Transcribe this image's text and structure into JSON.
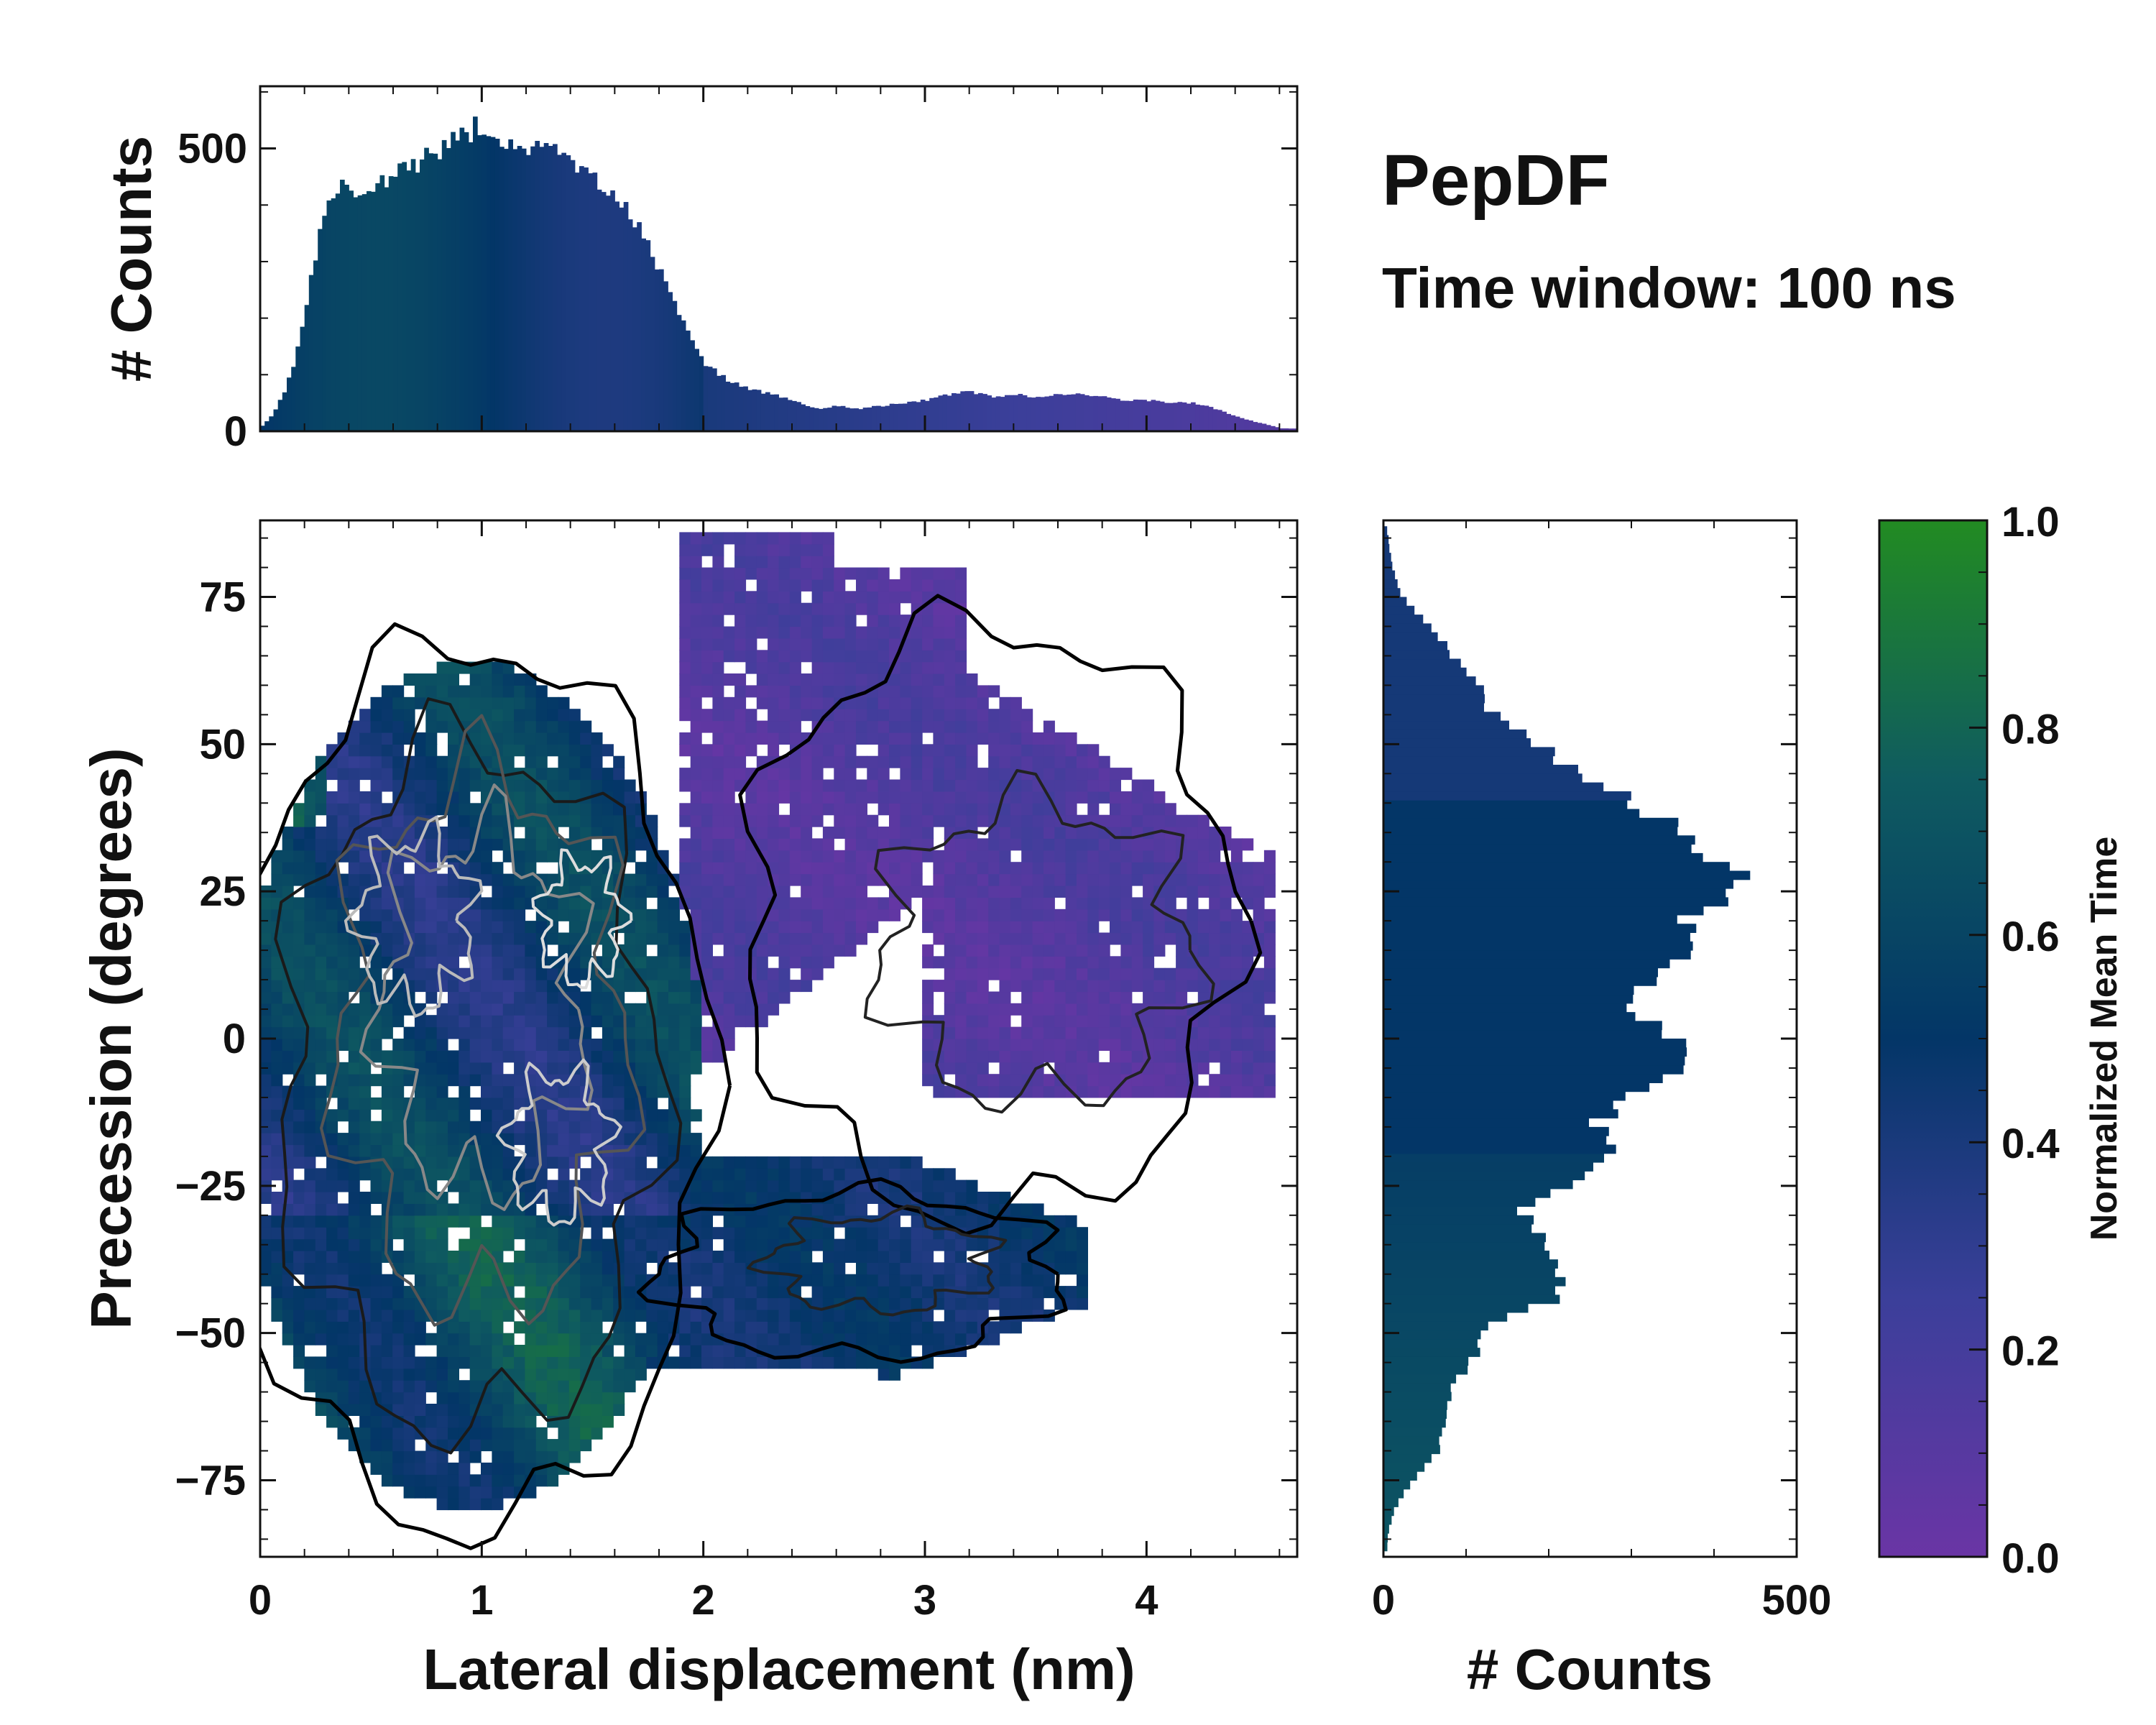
{
  "figure": {
    "title": "PepDF",
    "subtitle": "Time window: 100 ns"
  },
  "chart_data": [
    {
      "name": "main-2d-histogram",
      "type": "heatmap",
      "xlabel": "Lateral displacement (nm)",
      "ylabel": "Precession (degrees)",
      "xlim": [
        0,
        4.68
      ],
      "ylim": [
        -88,
        88
      ],
      "xticks": [
        0,
        1,
        2,
        3,
        4
      ],
      "xtick_labels": [
        "0",
        "1",
        "2",
        "3",
        "4"
      ],
      "yticks": [
        75,
        50,
        25,
        0,
        -25,
        -50,
        -75
      ],
      "ytick_labels": [
        "75",
        "50",
        "25",
        "0",
        "−25",
        "−50",
        "−75"
      ],
      "color_encoding": "Normalized Mean Time",
      "regions": [
        {
          "name": "main-lobe",
          "x": [
            0.0,
            2.0
          ],
          "y": [
            -84,
            65
          ],
          "mean_time": 0.5
        },
        {
          "name": "upper-arm",
          "x": [
            2.0,
            4.6
          ],
          "y": [
            -10,
            87
          ],
          "mean_time": 0.15
        },
        {
          "name": "lower-arm",
          "x": [
            1.7,
            3.7
          ],
          "y": [
            -58,
            -20
          ],
          "mean_time": 0.48
        }
      ]
    },
    {
      "name": "top-marginal-histogram",
      "type": "bar",
      "orientation": "vertical",
      "ylabel": "# Counts",
      "xlim": [
        0,
        4.68
      ],
      "ylim": [
        0,
        610
      ],
      "yticks": [
        0,
        500
      ],
      "ytick_labels": [
        "0",
        "500"
      ],
      "x": [
        0.0,
        0.05,
        0.1,
        0.15,
        0.2,
        0.25,
        0.3,
        0.35,
        0.4,
        0.45,
        0.5,
        0.6,
        0.7,
        0.8,
        0.9,
        1.0,
        1.1,
        1.2,
        1.3,
        1.4,
        1.5,
        1.6,
        1.7,
        1.8,
        1.9,
        2.0,
        2.1,
        2.2,
        2.3,
        2.4,
        2.5,
        2.6,
        2.7,
        2.8,
        2.9,
        3.0,
        3.1,
        3.2,
        3.3,
        3.4,
        3.5,
        3.6,
        3.7,
        3.8,
        3.9,
        4.0,
        4.1,
        4.2,
        4.3,
        4.4,
        4.5,
        4.6
      ],
      "values": [
        10,
        30,
        70,
        130,
        230,
        330,
        400,
        430,
        430,
        425,
        430,
        455,
        475,
        500,
        520,
        545,
        500,
        495,
        500,
        470,
        440,
        410,
        360,
        280,
        190,
        120,
        90,
        75,
        65,
        55,
        40,
        45,
        40,
        45,
        50,
        55,
        65,
        70,
        60,
        65,
        60,
        65,
        65,
        60,
        55,
        55,
        50,
        50,
        40,
        25,
        15,
        5
      ],
      "color_by": "Normalized Mean Time"
    },
    {
      "name": "right-marginal-histogram",
      "type": "bar",
      "orientation": "horizontal",
      "xlabel": "# Counts",
      "xlim": [
        0,
        500
      ],
      "xticks": [
        0,
        500
      ],
      "xtick_labels": [
        "0",
        "500"
      ],
      "ylim": [
        -88,
        88
      ],
      "y": [
        85,
        80,
        75,
        70,
        65,
        60,
        55,
        50,
        45,
        40,
        35,
        30,
        25,
        20,
        15,
        10,
        5,
        0,
        -5,
        -10,
        -15,
        -20,
        -25,
        -30,
        -35,
        -40,
        -45,
        -50,
        -55,
        -60,
        -65,
        -70,
        -75,
        -80,
        -85
      ],
      "values": [
        5,
        10,
        20,
        50,
        80,
        110,
        130,
        180,
        230,
        300,
        350,
        390,
        450,
        360,
        370,
        320,
        300,
        350,
        360,
        310,
        260,
        270,
        240,
        170,
        190,
        210,
        210,
        120,
        110,
        80,
        75,
        70,
        40,
        15,
        5
      ],
      "color_by": "Normalized Mean Time"
    }
  ],
  "colorbar": {
    "label": "Normalized Mean Time",
    "ticks": [
      1.0,
      0.8,
      0.6,
      0.4,
      0.2,
      0.0
    ],
    "tick_labels": [
      "1.0",
      "0.8",
      "0.6",
      "0.4",
      "0.2",
      "0.0"
    ],
    "colormap": [
      "#6a35a5",
      "#3b3f9a",
      "#033667",
      "#0f5b60",
      "#228b22"
    ]
  }
}
